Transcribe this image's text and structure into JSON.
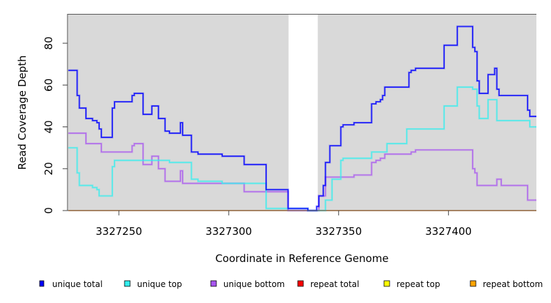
{
  "chart_data": {
    "type": "line",
    "step": true,
    "title": "",
    "xlabel": "Coordinate in Reference Genome",
    "ylabel": "Read Coverage Depth",
    "xlim": [
      3327226.6,
      3327440
    ],
    "ylim": [
      0,
      94
    ],
    "xticks": [
      3327250,
      3327300,
      3327350,
      3327400
    ],
    "xtick_labels": [
      "3327250",
      "3327300",
      "3327350",
      "3327400"
    ],
    "yticks": [
      0,
      20,
      40,
      60,
      80
    ],
    "ytick_labels": [
      "0",
      "20",
      "40",
      "60",
      "80"
    ],
    "shaded_regions": [
      [
        3327226.6,
        3327327.2
      ],
      [
        3327340.5,
        3327440
      ]
    ],
    "shade_color": "#d9d9d9",
    "legend_position": "bottom",
    "end_x": 3327440,
    "series": [
      {
        "name": "unique total",
        "color": "#0000ff",
        "steps": [
          [
            3327227,
            67
          ],
          [
            3327231,
            55
          ],
          [
            3327232,
            49
          ],
          [
            3327235,
            44
          ],
          [
            3327238,
            43
          ],
          [
            3327240,
            42
          ],
          [
            3327241,
            39
          ],
          [
            3327242,
            35
          ],
          [
            3327247,
            49
          ],
          [
            3327248,
            52
          ],
          [
            3327256,
            55
          ],
          [
            3327257,
            56
          ],
          [
            3327261,
            46
          ],
          [
            3327265,
            50
          ],
          [
            3327268,
            44
          ],
          [
            3327271,
            38
          ],
          [
            3327273,
            37
          ],
          [
            3327278,
            42
          ],
          [
            3327279,
            36
          ],
          [
            3327283,
            28
          ],
          [
            3327286,
            27
          ],
          [
            3327297,
            26
          ],
          [
            3327307,
            22
          ],
          [
            3327317,
            10
          ],
          [
            3327327,
            1
          ],
          [
            3327336,
            0
          ],
          [
            3327340,
            2
          ],
          [
            3327341,
            7
          ],
          [
            3327343,
            12
          ],
          [
            3327344,
            23
          ],
          [
            3327346,
            31
          ],
          [
            3327351,
            40
          ],
          [
            3327352,
            41
          ],
          [
            3327357,
            42
          ],
          [
            3327365,
            51
          ],
          [
            3327367,
            52
          ],
          [
            3327369,
            53
          ],
          [
            3327370,
            55
          ],
          [
            3327371,
            59
          ],
          [
            3327382,
            66
          ],
          [
            3327383,
            67
          ],
          [
            3327385,
            68
          ],
          [
            3327398,
            79
          ],
          [
            3327404,
            88
          ],
          [
            3327411,
            78
          ],
          [
            3327412,
            76
          ],
          [
            3327413,
            62
          ],
          [
            3327414,
            56
          ],
          [
            3327418,
            65
          ],
          [
            3327421,
            68
          ],
          [
            3327422,
            58
          ],
          [
            3327423,
            55
          ],
          [
            3327436,
            48
          ],
          [
            3327437,
            45
          ]
        ]
      },
      {
        "name": "unique top",
        "color": "#33eeee",
        "steps": [
          [
            3327227,
            30
          ],
          [
            3327231,
            18
          ],
          [
            3327232,
            12
          ],
          [
            3327238,
            11
          ],
          [
            3327240,
            10
          ],
          [
            3327241,
            7
          ],
          [
            3327247,
            21
          ],
          [
            3327248,
            24
          ],
          [
            3327273,
            23
          ],
          [
            3327283,
            15
          ],
          [
            3327286,
            14
          ],
          [
            3327297,
            13
          ],
          [
            3327317,
            1
          ],
          [
            3327336,
            0
          ],
          [
            3327344,
            5
          ],
          [
            3327347,
            15
          ],
          [
            3327351,
            24
          ],
          [
            3327352,
            25
          ],
          [
            3327365,
            28
          ],
          [
            3327372,
            32
          ],
          [
            3327381,
            39
          ],
          [
            3327398,
            50
          ],
          [
            3327404,
            59
          ],
          [
            3327411,
            58
          ],
          [
            3327413,
            50
          ],
          [
            3327414,
            44
          ],
          [
            3327418,
            53
          ],
          [
            3327422,
            43
          ],
          [
            3327437,
            40
          ]
        ]
      },
      {
        "name": "unique bottom",
        "color": "#a855f0",
        "steps": [
          [
            3327227,
            37
          ],
          [
            3327235,
            32
          ],
          [
            3327242,
            28
          ],
          [
            3327256,
            31
          ],
          [
            3327257,
            32
          ],
          [
            3327261,
            22
          ],
          [
            3327265,
            26
          ],
          [
            3327268,
            20
          ],
          [
            3327271,
            14
          ],
          [
            3327278,
            19
          ],
          [
            3327279,
            13
          ],
          [
            3327307,
            9
          ],
          [
            3327327,
            0
          ],
          [
            3327341,
            7
          ],
          [
            3327344,
            16
          ],
          [
            3327357,
            17
          ],
          [
            3327365,
            23
          ],
          [
            3327367,
            24
          ],
          [
            3327369,
            25
          ],
          [
            3327371,
            27
          ],
          [
            3327383,
            28
          ],
          [
            3327385,
            29
          ],
          [
            3327411,
            20
          ],
          [
            3327412,
            18
          ],
          [
            3327413,
            12
          ],
          [
            3327422,
            15
          ],
          [
            3327424,
            12
          ],
          [
            3327436,
            5
          ]
        ]
      },
      {
        "name": "repeat total",
        "color": "#ff0000",
        "steps": [
          [
            3327227,
            0
          ]
        ]
      },
      {
        "name": "repeat top",
        "color": "#ffff00",
        "steps": [
          [
            3327227,
            0
          ]
        ]
      },
      {
        "name": "repeat bottom",
        "color": "#ffa500",
        "steps": [
          [
            3327227,
            0
          ]
        ]
      }
    ]
  }
}
